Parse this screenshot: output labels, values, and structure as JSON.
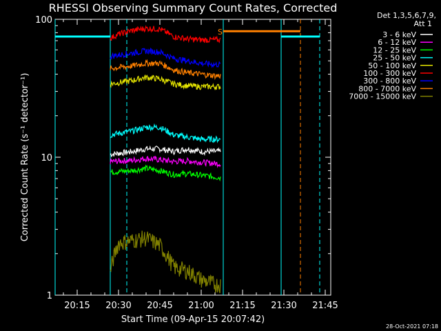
{
  "title": "RHESSI Observing Summary Count Rates, Corrected",
  "footer_timestamp": "28-Oct-2021 07:18",
  "colors": {
    "background": "#000000",
    "axes": "#ffffff",
    "c3_6": "#ffffff",
    "c6_12": "#ff00ff",
    "c12_25": "#00ff00",
    "c25_50": "#00ffff",
    "c50_100": "#e6e600",
    "c100_300": "#ff0000",
    "c300_800": "#0000ff",
    "c800_7000": "#ff8000",
    "c7000_15000": "#808000",
    "marker": "#ff8000",
    "attenuator": "#00ffff"
  },
  "chart_data": {
    "type": "line",
    "title": "RHESSI Observing Summary Count Rates, Corrected",
    "xlabel": "Start Time (09-Apr-15 20:07:42)",
    "ylabel": "Corrected Count Rate (s⁻¹ detector⁻¹)",
    "y_scale": "log",
    "xlim": [
      "20:07",
      "21:47"
    ],
    "ylim": [
      1,
      100
    ],
    "x_ticks": [
      "20:15",
      "20:30",
      "20:45",
      "21:00",
      "21:15",
      "21:30",
      "21:45"
    ],
    "y_ticks": [
      "1",
      "10",
      "100"
    ],
    "legend_header": "Det 1,3,5,6,7,9,",
    "legend_subheader": "Att 1",
    "legend_position": "right",
    "series": [
      {
        "name": "3 - 6 keV",
        "color": "#ffffff",
        "points": [
          [
            "20:27",
            10.5
          ],
          [
            "20:35",
            11
          ],
          [
            "20:40",
            11.5
          ],
          [
            "20:45",
            11.5
          ],
          [
            "20:50",
            11
          ],
          [
            "20:55",
            11.5
          ],
          [
            "21:00",
            11
          ],
          [
            "21:05",
            11
          ],
          [
            "21:07",
            11
          ]
        ]
      },
      {
        "name": "6 - 12 keV",
        "color": "#ff00ff",
        "points": [
          [
            "20:27",
            9.3
          ],
          [
            "20:35",
            9.5
          ],
          [
            "20:40",
            9.8
          ],
          [
            "20:45",
            9.6
          ],
          [
            "20:50",
            9.3
          ],
          [
            "20:55",
            9.4
          ],
          [
            "21:00",
            9.2
          ],
          [
            "21:05",
            9.0
          ],
          [
            "21:07",
            9.0
          ]
        ]
      },
      {
        "name": "12 - 25 keV",
        "color": "#00ff00",
        "points": [
          [
            "20:27",
            7.8
          ],
          [
            "20:35",
            8.0
          ],
          [
            "20:40",
            8.3
          ],
          [
            "20:45",
            8.0
          ],
          [
            "20:50",
            7.5
          ],
          [
            "20:55",
            7.6
          ],
          [
            "21:00",
            7.4
          ],
          [
            "21:05",
            7.2
          ],
          [
            "21:07",
            7.1
          ]
        ]
      },
      {
        "name": "25 - 50 keV",
        "color": "#00ffff",
        "points": [
          [
            "20:27",
            14.5
          ],
          [
            "20:35",
            15.5
          ],
          [
            "20:40",
            16.5
          ],
          [
            "20:45",
            16.5
          ],
          [
            "20:50",
            14.5
          ],
          [
            "20:55",
            14
          ],
          [
            "21:00",
            13.5
          ],
          [
            "21:05",
            13.5
          ],
          [
            "21:07",
            13.5
          ]
        ]
      },
      {
        "name": "50 - 100 keV",
        "color": "#e6e600",
        "points": [
          [
            "20:27",
            34
          ],
          [
            "20:35",
            36
          ],
          [
            "20:40",
            38
          ],
          [
            "20:45",
            37
          ],
          [
            "20:50",
            34
          ],
          [
            "20:55",
            33
          ],
          [
            "21:00",
            32.5
          ],
          [
            "21:05",
            32.5
          ],
          [
            "21:07",
            32.5
          ]
        ]
      },
      {
        "name": "100 - 300 keV",
        "color": "#ff0000",
        "points": [
          [
            "20:27",
            73
          ],
          [
            "20:30",
            78
          ],
          [
            "20:35",
            83
          ],
          [
            "20:40",
            86
          ],
          [
            "20:45",
            85
          ],
          [
            "20:50",
            75
          ],
          [
            "20:55",
            72
          ],
          [
            "21:00",
            71
          ],
          [
            "21:05",
            71
          ],
          [
            "21:07",
            71
          ]
        ]
      },
      {
        "name": "300 - 800 keV",
        "color": "#0000ff",
        "points": [
          [
            "20:27",
            54
          ],
          [
            "20:35",
            57
          ],
          [
            "20:40",
            59
          ],
          [
            "20:45",
            58
          ],
          [
            "20:50",
            52
          ],
          [
            "20:55",
            50
          ],
          [
            "21:00",
            48
          ],
          [
            "21:05",
            47
          ],
          [
            "21:07",
            47
          ]
        ]
      },
      {
        "name": "800 - 7000 keV",
        "color": "#ff8000",
        "points": [
          [
            "20:27",
            44
          ],
          [
            "20:35",
            46
          ],
          [
            "20:40",
            48
          ],
          [
            "20:45",
            48
          ],
          [
            "20:50",
            43
          ],
          [
            "20:55",
            41
          ],
          [
            "21:00",
            40
          ],
          [
            "21:05",
            39
          ],
          [
            "21:07",
            39
          ]
        ]
      },
      {
        "name": "7000 - 15000 keV",
        "color": "#808000",
        "points": [
          [
            "20:27",
            1.5
          ],
          [
            "20:30",
            2.4
          ],
          [
            "20:40",
            2.6
          ],
          [
            "20:45",
            2.3
          ],
          [
            "20:50",
            1.6
          ],
          [
            "20:55",
            1.5
          ],
          [
            "21:00",
            1.3
          ],
          [
            "21:05",
            1.2
          ],
          [
            "21:07",
            1.2
          ]
        ]
      }
    ],
    "attenuator_level": 75,
    "marker_label": "S",
    "vertical_lines": [
      {
        "time": "20:07",
        "color": "#00ffff",
        "style": "solid"
      },
      {
        "time": "20:27",
        "color": "#ff8000",
        "style": "solid"
      },
      {
        "time": "20:27",
        "color": "#00ffff",
        "style": "solid"
      },
      {
        "time": "20:33",
        "color": "#00ffff",
        "style": "dashed"
      },
      {
        "time": "21:08",
        "color": "#ff8000",
        "style": "solid"
      },
      {
        "time": "21:08",
        "color": "#00ffff",
        "style": "solid"
      },
      {
        "time": "21:29",
        "color": "#00ffff",
        "style": "solid"
      },
      {
        "time": "21:36",
        "color": "#ff8000",
        "style": "dashed"
      },
      {
        "time": "21:43",
        "color": "#00ffff",
        "style": "dashed"
      }
    ],
    "horizontal_segments": [
      {
        "from": "20:07",
        "to": "20:27",
        "value": 75,
        "color": "#00ffff"
      },
      {
        "from": "21:08",
        "to": "21:36",
        "value": 82,
        "color": "#ff8000"
      },
      {
        "from": "21:29",
        "to": "21:43",
        "value": 75,
        "color": "#00ffff"
      }
    ]
  }
}
